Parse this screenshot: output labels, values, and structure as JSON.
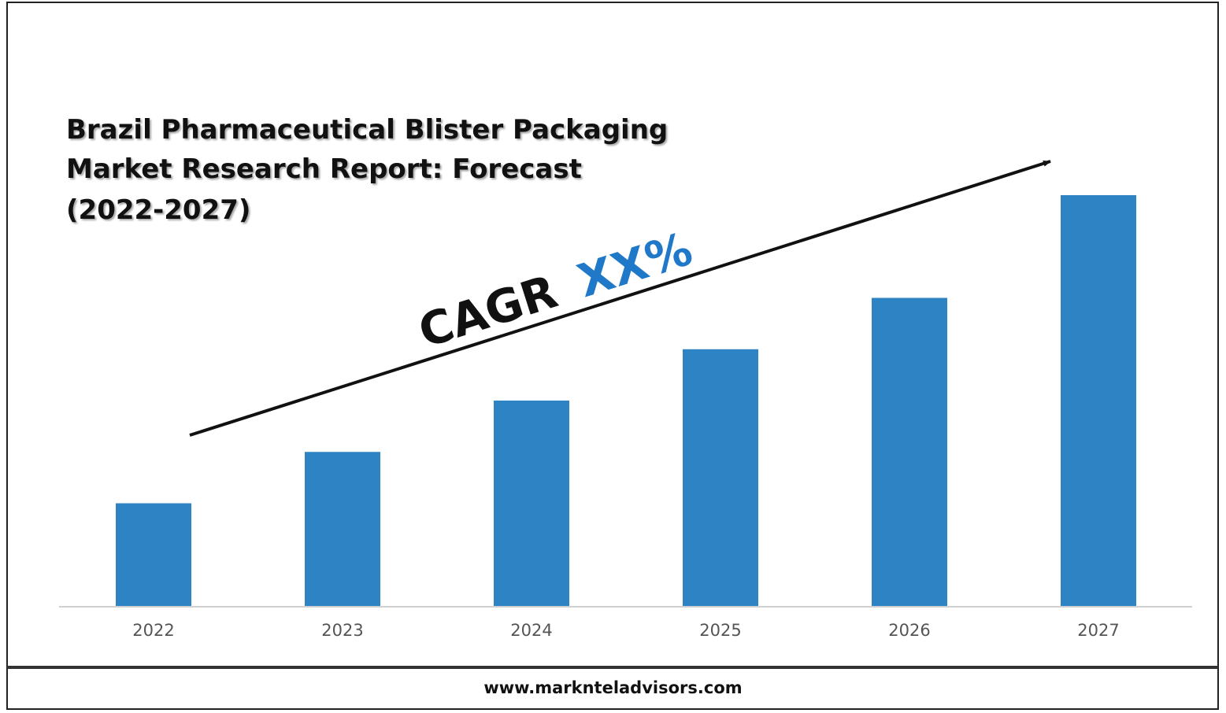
{
  "title_lines": [
    "Brazil Pharmaceutical Blister Packaging",
    "Market Research Report: Forecast",
    "(2022-2027)"
  ],
  "cagr": {
    "label": "CAGR",
    "value": "XX%"
  },
  "footer": {
    "url": "www.marknteladvisors.com"
  },
  "colors": {
    "bar": "#2e83c4",
    "cagr_value": "#1f78c8",
    "text": "#111111",
    "axis_tick": "#555555"
  },
  "chart_data": {
    "type": "bar",
    "title": "Brazil Pharmaceutical Blister Packaging Market Research Report: Forecast (2022-2027)",
    "categories": [
      "2022",
      "2023",
      "2024",
      "2025",
      "2026",
      "2027"
    ],
    "values": [
      1.0,
      1.5,
      2.0,
      2.5,
      3.0,
      4.0
    ],
    "ylim": [
      0,
      4.2
    ],
    "xlabel": "",
    "ylabel": "",
    "grid": false,
    "annotations": [
      "CAGR XX%"
    ]
  }
}
